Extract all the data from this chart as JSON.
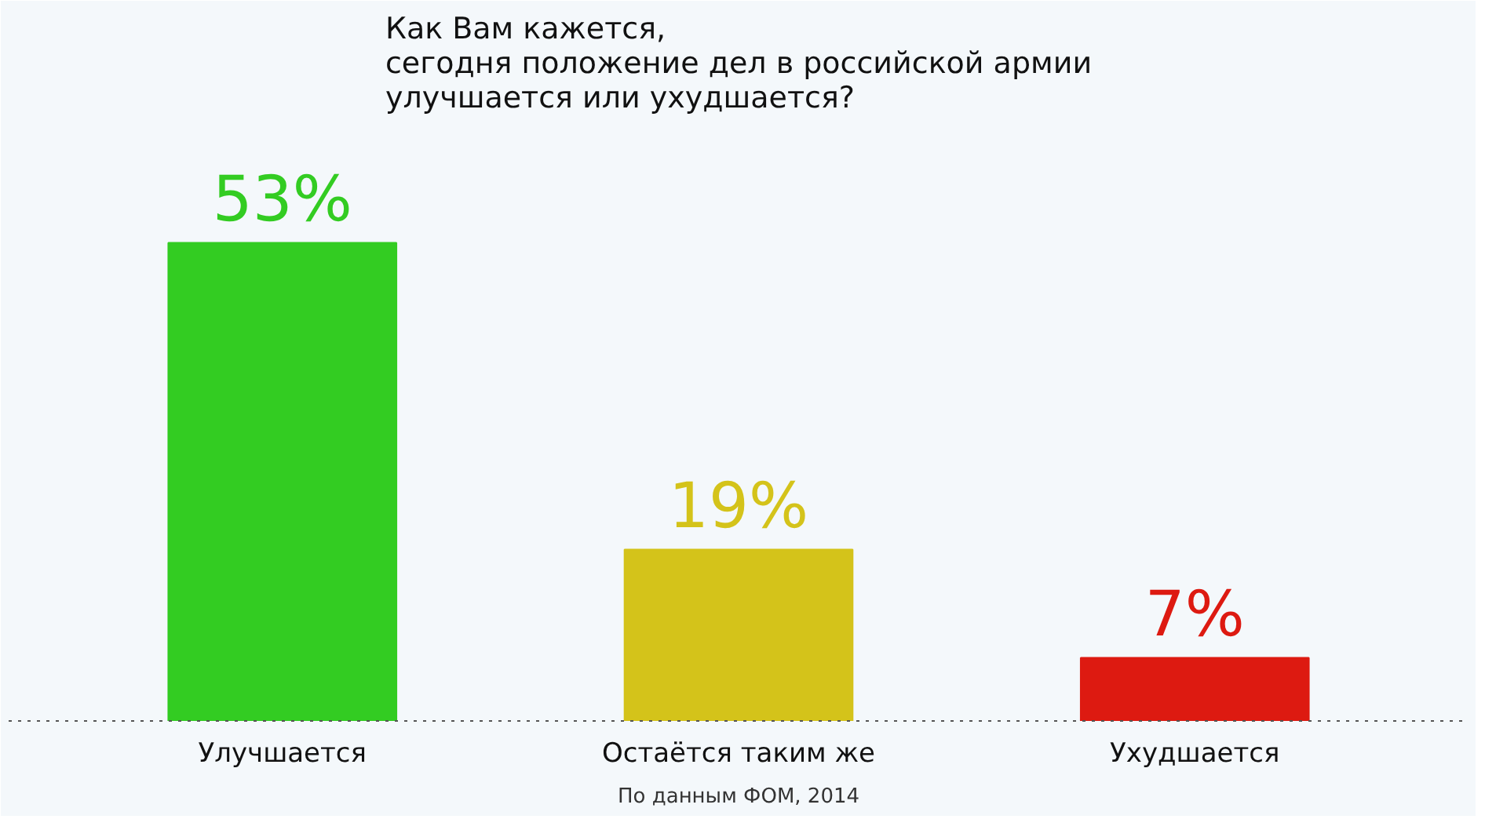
{
  "chart_data": {
    "type": "bar",
    "title": "Как Вам кажется,\nсегодня положение дел в российской армии\nулучшается или ухудшается?",
    "categories": [
      "Улучшается",
      "Остаётся таким же",
      "Ухудшается"
    ],
    "values": [
      53,
      19,
      7
    ],
    "colors": [
      "#33cc22",
      "#d4c31a",
      "#dd1a11"
    ],
    "value_labels": [
      "53%",
      "19%",
      "7%"
    ],
    "tick_labels": "x",
    "grid": false,
    "annotations": [
      "По данным ФОМ, 2014"
    ]
  }
}
